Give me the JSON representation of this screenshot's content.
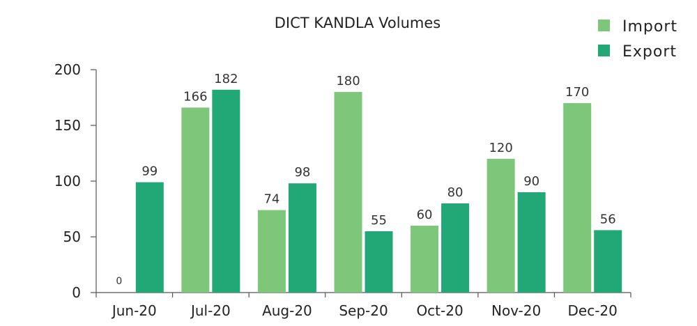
{
  "chart_data": {
    "type": "bar",
    "title": "DICT KANDLA Volumes",
    "categories": [
      "Jun-20",
      "Jul-20",
      "Aug-20",
      "Sep-20",
      "Oct-20",
      "Nov-20",
      "Dec-20"
    ],
    "series": [
      {
        "name": "Import",
        "values": [
          0,
          166,
          74,
          180,
          60,
          120,
          170
        ],
        "color": "#7dc67a"
      },
      {
        "name": "Export",
        "values": [
          99,
          182,
          98,
          55,
          80,
          90,
          56
        ],
        "color": "#22a877"
      }
    ],
    "xlabel": "",
    "ylabel": "",
    "ylim": [
      0,
      200
    ],
    "yticks": [
      0,
      50,
      100,
      150,
      200
    ],
    "grid": false,
    "legend_position": "top-right",
    "data_labels": true
  }
}
